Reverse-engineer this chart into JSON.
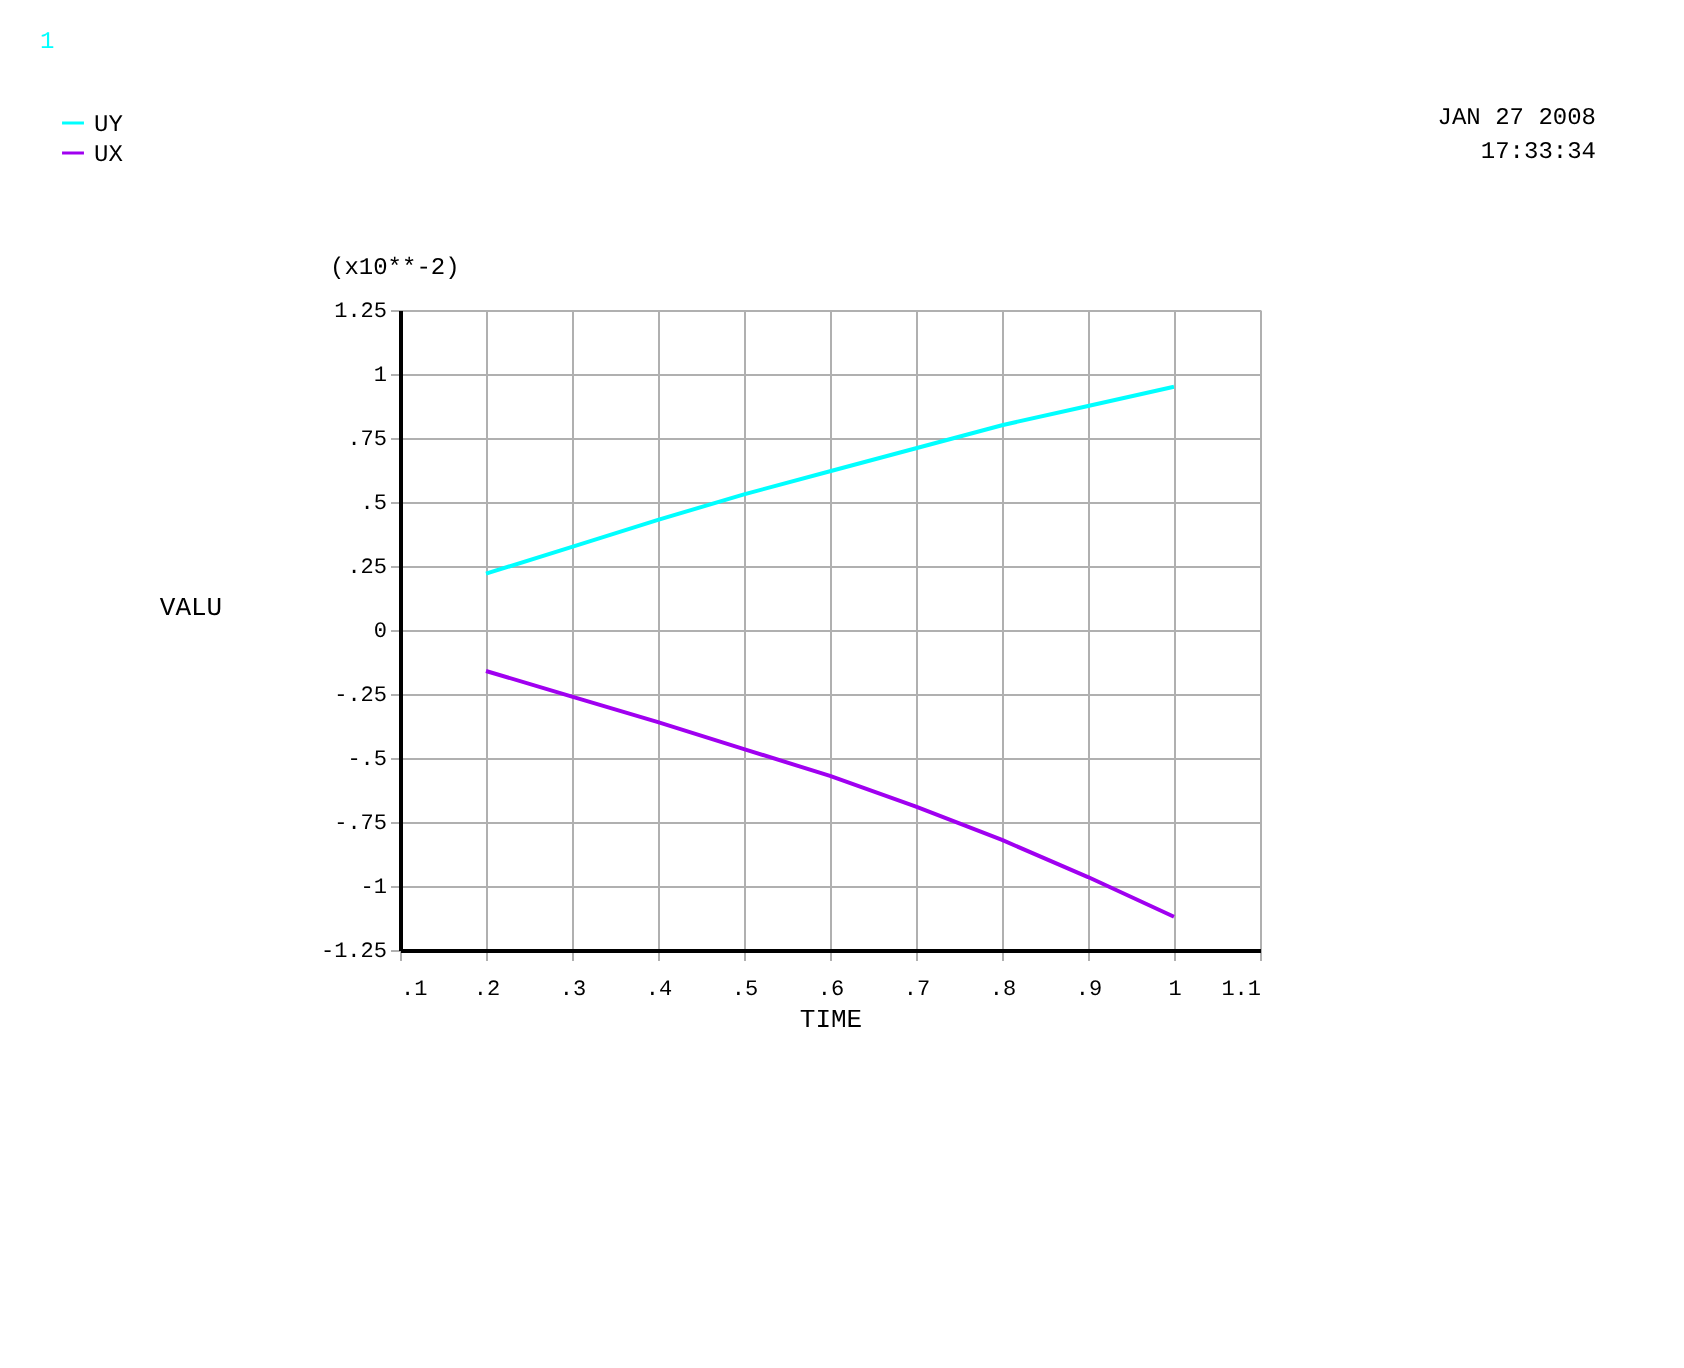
{
  "chart_data": {
    "type": "line",
    "xlabel": "TIME",
    "ylabel": "VALU",
    "x": [
      0.2,
      0.3,
      0.4,
      0.5,
      0.6,
      0.7,
      0.8,
      0.9,
      1.0
    ],
    "series": [
      {
        "name": "UY",
        "color": "#00ffff",
        "values": [
          0.22,
          0.325,
          0.43,
          0.53,
          0.62,
          0.71,
          0.8,
          0.875,
          0.95
        ]
      },
      {
        "name": "UX",
        "color": "#a000f0",
        "values": [
          -0.16,
          -0.26,
          -0.36,
          -0.465,
          -0.57,
          -0.69,
          -0.82,
          -0.965,
          -1.12
        ]
      }
    ],
    "xlim": [
      0.1,
      1.1
    ],
    "xticks": [
      {
        "value": 0.1,
        "label": ".1"
      },
      {
        "value": 0.2,
        "label": ".2"
      },
      {
        "value": 0.3,
        "label": ".3"
      },
      {
        "value": 0.4,
        "label": ".4"
      },
      {
        "value": 0.5,
        "label": ".5"
      },
      {
        "value": 0.6,
        "label": ".6"
      },
      {
        "value": 0.7,
        "label": ".7"
      },
      {
        "value": 0.8,
        "label": ".8"
      },
      {
        "value": 0.9,
        "label": ".9"
      },
      1,
      1.1
    ],
    "ylim": [
      -1.25,
      1.25
    ],
    "yticks": [
      -1.25,
      -1,
      {
        "value": -0.75,
        "label": "-.75"
      },
      {
        "value": -0.5,
        "label": "-.5"
      },
      {
        "value": -0.25,
        "label": "-.25"
      },
      0,
      {
        "value": 0.25,
        "label": ".25"
      },
      {
        "value": 0.5,
        "label": ".5"
      },
      {
        "value": 0.75,
        "label": ".75"
      },
      1,
      1.25
    ],
    "grid": true,
    "legend": "top left",
    "marker": "none",
    "line_style": "solid",
    "annotations": [
      "1",
      "(x10**-2)",
      "JAN 27 2008",
      "17:33:34"
    ]
  }
}
